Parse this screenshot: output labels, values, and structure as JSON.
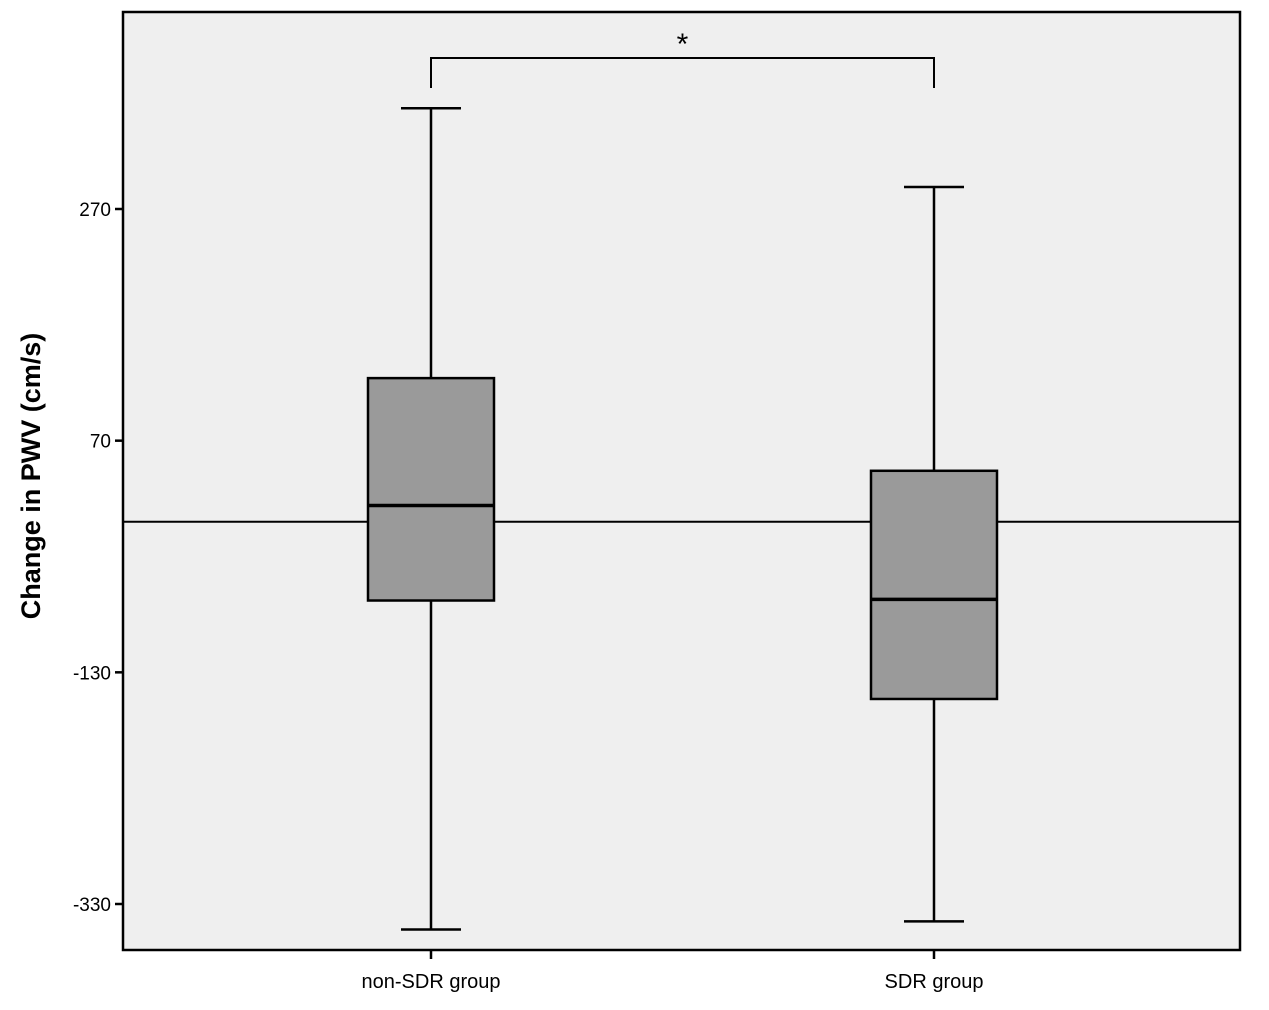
{
  "chart_data": {
    "type": "box",
    "ylabel": "Change in PWV (cm/s)",
    "xlabel": "",
    "categories": [
      "non-SDR group",
      "SDR group"
    ],
    "yticks": [
      270,
      70,
      -130,
      -330
    ],
    "ylim": [
      -370,
      440
    ],
    "reference_line": 0,
    "boxes": [
      {
        "category": "non-SDR group",
        "whisker_low": -352,
        "q1": -68,
        "median": 14,
        "q3": 124,
        "whisker_high": 357
      },
      {
        "category": "SDR group",
        "whisker_low": -345,
        "q1": -153,
        "median": -67,
        "q3": 44,
        "whisker_high": 289
      }
    ],
    "significance": {
      "pair": [
        "non-SDR group",
        "SDR group"
      ],
      "label": "*"
    },
    "colors": {
      "plot_background": "#efefef",
      "box_fill": "#9a9a9a",
      "stroke": "#000000"
    },
    "grid": false
  }
}
